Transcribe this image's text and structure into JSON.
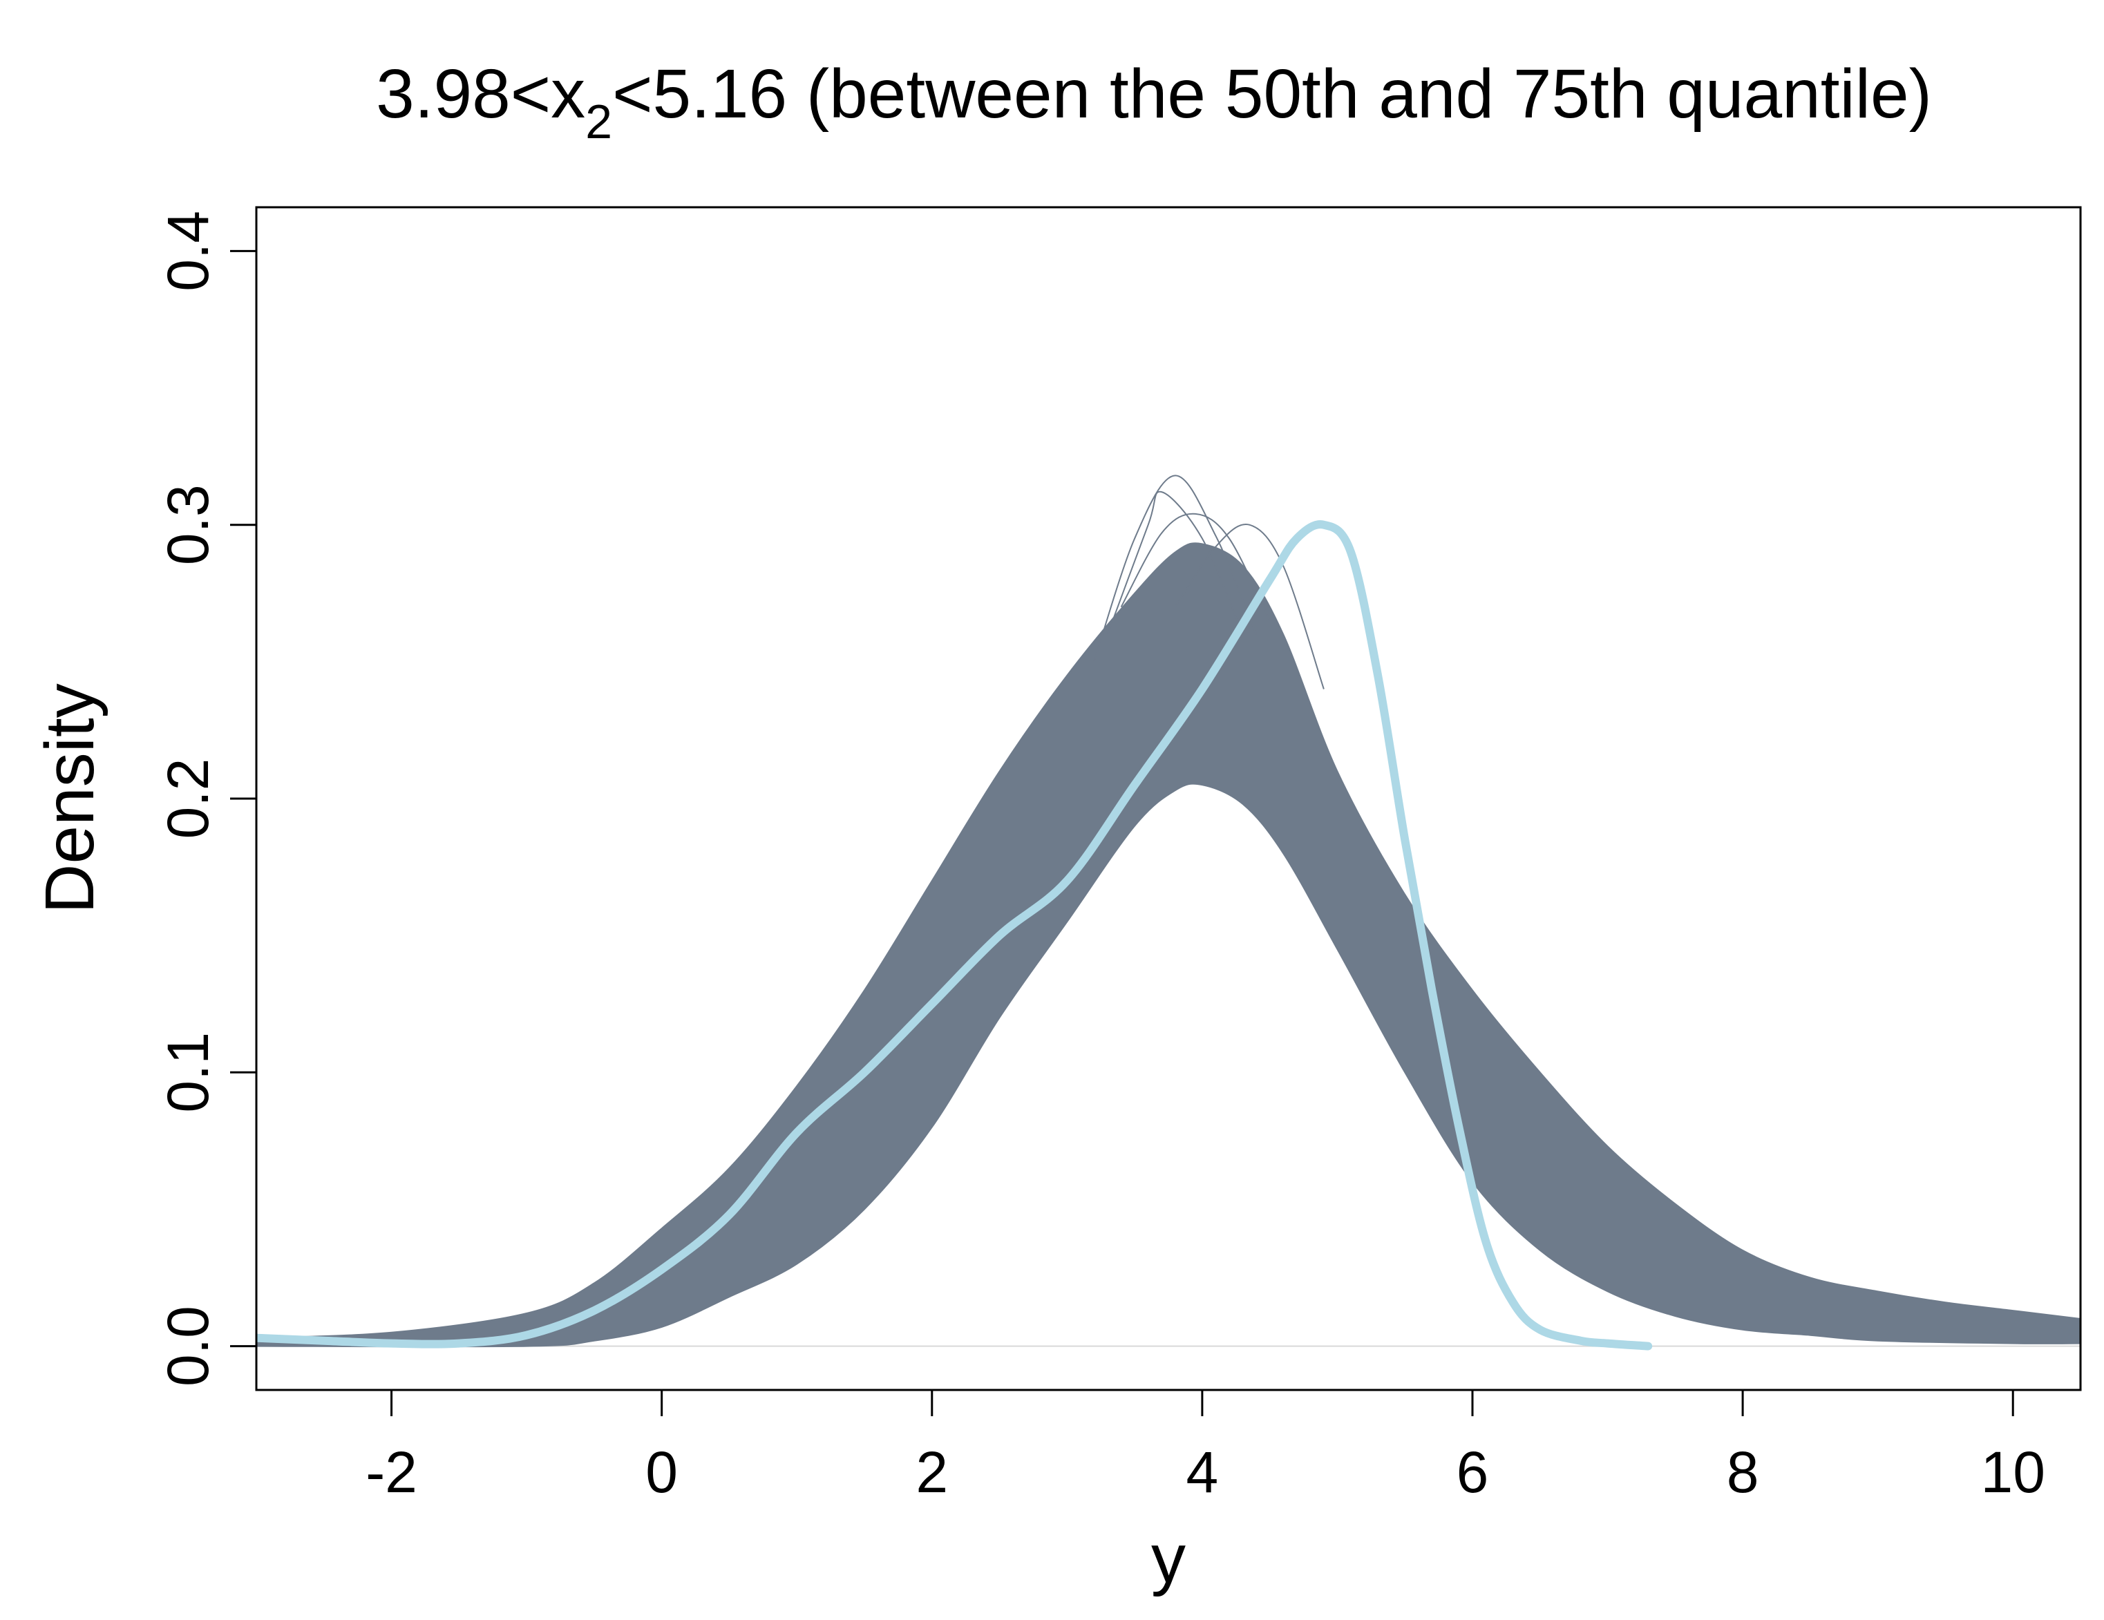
{
  "title": {
    "prefix": "3.98<x",
    "subscript": "2",
    "suffix": "<5.16 (between the 50th and 75th quantile)"
  },
  "chart_data": {
    "type": "line",
    "xlabel": "y",
    "ylabel": "Density",
    "xlim": [
      -3,
      10.5
    ],
    "ylim": [
      -0.016,
      0.416
    ],
    "x_ticks": [
      -2,
      0,
      2,
      4,
      6,
      8,
      10
    ],
    "x_tick_labels": [
      "-2",
      "0",
      "2",
      "4",
      "6",
      "8",
      "10"
    ],
    "y_ticks": [
      0.0,
      0.1,
      0.2,
      0.3,
      0.4
    ],
    "y_tick_labels": [
      "0.0",
      "0.1",
      "0.2",
      "0.3",
      "0.4"
    ],
    "grid": false,
    "legend": "none",
    "baseline": 0,
    "series": [
      {
        "role": "posterior-predictive-density-draws",
        "color": "#6e7b8b",
        "band_upper": {
          "x": [
            -3.0,
            -2.0,
            -1.0,
            -0.5,
            0.0,
            0.5,
            1.0,
            1.5,
            2.0,
            2.5,
            3.0,
            3.5,
            3.8,
            4.0,
            4.3,
            4.6,
            5.0,
            5.5,
            6.0,
            6.5,
            7.0,
            7.5,
            8.0,
            8.5,
            9.0,
            9.5,
            10.0,
            10.5
          ],
          "y": [
            0.003,
            0.005,
            0.012,
            0.023,
            0.043,
            0.065,
            0.095,
            0.13,
            0.17,
            0.21,
            0.245,
            0.275,
            0.29,
            0.293,
            0.285,
            0.26,
            0.21,
            0.165,
            0.13,
            0.1,
            0.073,
            0.052,
            0.035,
            0.025,
            0.02,
            0.016,
            0.013,
            0.01
          ]
        },
        "band_lower": {
          "x": [
            -3.0,
            -1.0,
            -0.5,
            0.0,
            0.5,
            1.0,
            1.5,
            2.0,
            2.5,
            3.0,
            3.5,
            3.8,
            4.0,
            4.3,
            4.6,
            5.0,
            5.5,
            6.0,
            6.5,
            7.0,
            7.5,
            8.0,
            8.5,
            9.0,
            10.0,
            10.5
          ],
          "y": [
            0.0,
            0.0,
            0.002,
            0.007,
            0.018,
            0.03,
            0.05,
            0.08,
            0.12,
            0.155,
            0.19,
            0.203,
            0.205,
            0.198,
            0.18,
            0.145,
            0.1,
            0.06,
            0.035,
            0.02,
            0.011,
            0.006,
            0.004,
            0.002,
            0.001,
            0.001
          ]
        },
        "peak_draws": [
          {
            "x": [
              3.2,
              3.5,
              3.8,
              4.1,
              4.4
            ],
            "y": [
              0.25,
              0.295,
              0.318,
              0.296,
              0.26
            ]
          },
          {
            "x": [
              3.3,
              3.6,
              3.7,
              4.0,
              4.3
            ],
            "y": [
              0.26,
              0.3,
              0.312,
              0.295,
              0.26
            ]
          },
          {
            "x": [
              3.8,
              4.1,
              4.35,
              4.6,
              4.9
            ],
            "y": [
              0.27,
              0.292,
              0.3,
              0.285,
              0.24
            ]
          },
          {
            "x": [
              3.4,
              3.7,
              3.95,
              4.2,
              4.5
            ],
            "y": [
              0.27,
              0.297,
              0.304,
              0.295,
              0.265
            ]
          }
        ]
      },
      {
        "role": "true-density",
        "color": "#add8e6",
        "x": [
          -3.0,
          -2.5,
          -2.0,
          -1.5,
          -1.0,
          -0.5,
          0.0,
          0.5,
          1.0,
          1.5,
          2.0,
          2.5,
          3.0,
          3.5,
          4.0,
          4.5,
          4.7,
          4.9,
          5.1,
          5.3,
          5.5,
          5.7,
          5.9,
          6.1,
          6.3,
          6.5,
          6.8,
          7.0,
          7.3
        ],
        "y": [
          0.003,
          0.002,
          0.001,
          0.001,
          0.004,
          0.013,
          0.028,
          0.048,
          0.078,
          0.1,
          0.125,
          0.15,
          0.17,
          0.205,
          0.24,
          0.28,
          0.295,
          0.3,
          0.29,
          0.245,
          0.185,
          0.13,
          0.08,
          0.038,
          0.016,
          0.006,
          0.002,
          0.001,
          0.0
        ]
      }
    ]
  }
}
